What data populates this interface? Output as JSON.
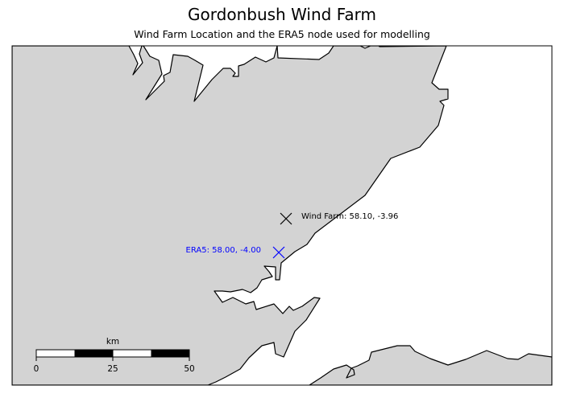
{
  "title": "Gordonbush Wind Farm",
  "subtitle": "Wind Farm Location and the ERA5 node used for modelling",
  "colors": {
    "land": "#d3d3d3",
    "sea": "#ffffff",
    "coastline": "#000000",
    "wind_farm_marker": "#000000",
    "era5_marker": "#0000ff"
  },
  "markers": {
    "wind_farm": {
      "label": "Wind Farm: 58.10, -3.96",
      "lat": 58.1,
      "lon": -3.96,
      "symbol": "x"
    },
    "era5": {
      "label": "ERA5: 58.00, -4.00",
      "lat": 58.0,
      "lon": -4.0,
      "symbol": "x"
    }
  },
  "scale_bar": {
    "unit": "km",
    "ticks": [
      "0",
      "25",
      "50"
    ]
  }
}
